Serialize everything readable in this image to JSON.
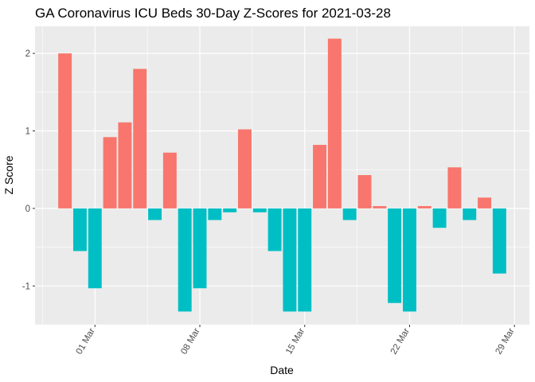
{
  "chart_data": {
    "type": "bar",
    "title": "GA Coronavirus ICU Beds 30-Day Z-Scores for 2021-03-28",
    "xlabel": "Date",
    "ylabel": "Z Score",
    "x_tick_labels": [
      "01 Mar",
      "08 Mar",
      "15 Mar",
      "22 Mar",
      "29 Mar"
    ],
    "x_tick_dates": [
      "2021-03-01",
      "2021-03-08",
      "2021-03-15",
      "2021-03-22",
      "2021-03-29"
    ],
    "y_ticks": [
      -1,
      0,
      1,
      2
    ],
    "ylim": [
      -1.5,
      2.35
    ],
    "xlim": [
      "2021-02-25",
      "2021-03-30"
    ],
    "grid": true,
    "legend": "none",
    "colors": {
      "positive": "#F8766D",
      "negative": "#00BFC4"
    },
    "x": [
      "2021-02-27",
      "2021-02-28",
      "2021-03-01",
      "2021-03-02",
      "2021-03-03",
      "2021-03-04",
      "2021-03-05",
      "2021-03-06",
      "2021-03-07",
      "2021-03-08",
      "2021-03-09",
      "2021-03-10",
      "2021-03-11",
      "2021-03-12",
      "2021-03-13",
      "2021-03-14",
      "2021-03-15",
      "2021-03-16",
      "2021-03-17",
      "2021-03-18",
      "2021-03-19",
      "2021-03-20",
      "2021-03-21",
      "2021-03-22",
      "2021-03-23",
      "2021-03-24",
      "2021-03-25",
      "2021-03-26",
      "2021-03-27",
      "2021-03-28"
    ],
    "values": [
      2.0,
      -0.55,
      -1.03,
      0.92,
      1.11,
      1.8,
      -0.15,
      0.72,
      -1.33,
      -1.03,
      -0.15,
      -0.05,
      1.02,
      -0.05,
      -0.55,
      -1.33,
      -1.33,
      0.82,
      2.19,
      -0.15,
      0.43,
      0.03,
      -1.22,
      -1.33,
      0.03,
      -0.25,
      0.53,
      -0.15,
      0.14,
      -0.84
    ]
  }
}
